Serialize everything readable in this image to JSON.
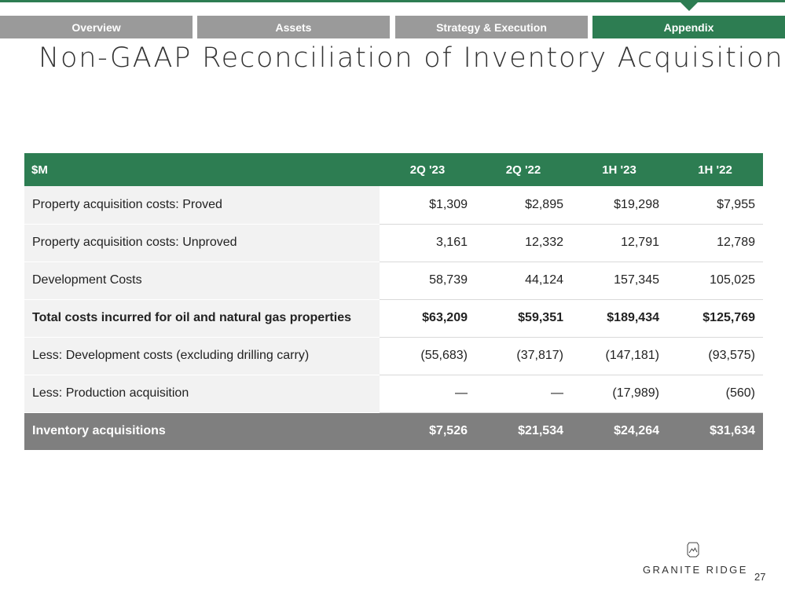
{
  "nav": {
    "tabs": [
      {
        "label": "Overview"
      },
      {
        "label": "Assets"
      },
      {
        "label": "Strategy & Execution"
      },
      {
        "label": "Appendix"
      }
    ],
    "active_tab": "Appendix"
  },
  "page": {
    "title": "Non-GAAP Reconciliation of Inventory Acquisition",
    "page_number": "27"
  },
  "table": {
    "headers": [
      "$M",
      "2Q '23",
      "2Q '22",
      "1H '23",
      "1H '22"
    ],
    "rows": [
      {
        "label": "Property acquisition costs: Proved",
        "values": [
          "$1,309",
          "$2,895",
          "$19,298",
          "$7,955"
        ]
      },
      {
        "label": "Property acquisition costs: Unproved",
        "values": [
          "3,161",
          "12,332",
          "12,791",
          "12,789"
        ]
      },
      {
        "label": "Development Costs",
        "values": [
          "58,739",
          "44,124",
          "157,345",
          "105,025"
        ]
      },
      {
        "label": "Total costs incurred for oil and natural gas properties",
        "values": [
          "$63,209",
          "$59,351",
          "$189,434",
          "$125,769"
        ]
      },
      {
        "label": "Less: Development costs (excluding drilling carry)",
        "values": [
          "(55,683)",
          "(37,817)",
          "(147,181)",
          "(93,575)"
        ]
      },
      {
        "label": "Less: Production acquisition",
        "values": [
          "—",
          "—",
          "(17,989)",
          "(560)"
        ]
      },
      {
        "label": "Inventory acquisitions",
        "values": [
          "$7,526",
          "$21,534",
          "$24,264",
          "$31,634"
        ]
      }
    ]
  },
  "logo": {
    "text": "GRANITE RIDGE",
    "icon": "granite-ridge-mountain-icon"
  },
  "colors": {
    "brand_green": "#2d7d52",
    "tab_gray": "#9a9a9a",
    "summary_gray": "#7f7f7f"
  }
}
